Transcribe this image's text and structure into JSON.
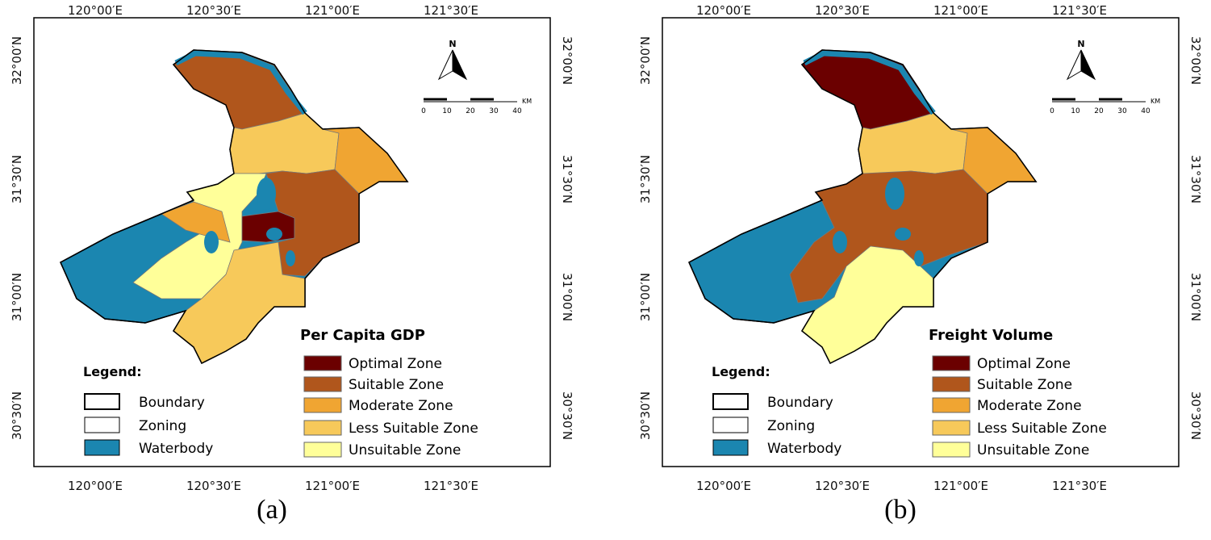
{
  "panels": [
    {
      "caption": "(a)",
      "title": "Per Capita GDP",
      "lon_labels": [
        "120°00′E",
        "120°30′E",
        "121°00′E",
        "121°30′E"
      ],
      "lat_labels": [
        "32°00′N",
        "31°30′N",
        "31°00′N",
        "30°30′N"
      ],
      "north": "N",
      "scale_labels": [
        "0",
        "10",
        "20",
        "30",
        "40"
      ],
      "scale_unit": "KM",
      "legend_title": "Legend:",
      "legend_items": [
        "Boundary",
        "Zoning",
        "Waterbody"
      ],
      "zones": [
        "Optimal Zone",
        "Suitable Zone",
        "Moderate Zone",
        "Less Suitable Zone",
        "Unsuitable Zone"
      ],
      "zone_colors": [
        "#6b0000",
        "#b0561c",
        "#f0a532",
        "#f7c95a",
        "#ffff99"
      ]
    },
    {
      "caption": "(b)",
      "title": "Freight Volume",
      "lon_labels": [
        "120°00′E",
        "120°30′E",
        "121°00′E",
        "121°30′E"
      ],
      "lat_labels": [
        "32°00′N",
        "31°30′N",
        "31°00′N",
        "30°30′N"
      ],
      "north": "N",
      "scale_labels": [
        "0",
        "10",
        "20",
        "30",
        "40"
      ],
      "scale_unit": "KM",
      "legend_title": "Legend:",
      "legend_items": [
        "Boundary",
        "Zoning",
        "Waterbody"
      ],
      "zones": [
        "Optimal Zone",
        "Suitable Zone",
        "Moderate Zone",
        "Less Suitable Zone",
        "Unsuitable Zone"
      ],
      "zone_colors": [
        "#6b0000",
        "#b0561c",
        "#f0a532",
        "#f7c95a",
        "#ffff99"
      ]
    }
  ]
}
